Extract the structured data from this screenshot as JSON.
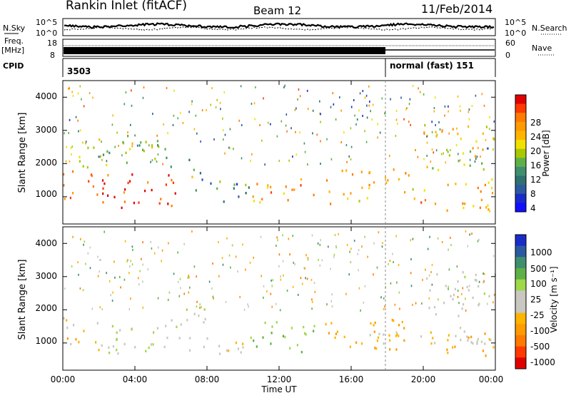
{
  "header": {
    "station": "Rankin Inlet (fitACF)",
    "beam": "Beam 12",
    "date": "11/Feb/2014"
  },
  "noise_panel": {
    "left_label": "N.Sky",
    "right_label": "N.Search",
    "left_ticks": [
      "10^5",
      "10^0"
    ],
    "right_ticks": [
      "10^5",
      "10^0"
    ]
  },
  "freq_panel": {
    "left_label": "Freq.",
    "left_unit": "[MHz]",
    "right_label": "Nave",
    "left_ticks": [
      "18",
      "8"
    ],
    "right_ticks": [
      "60",
      "0"
    ]
  },
  "cpid_panel": {
    "label": "CPID",
    "segments": [
      {
        "text": "3503"
      },
      {
        "text": "normal (fast) 151"
      }
    ]
  },
  "power_panel": {
    "ylabel": "Slant Range [km]",
    "yticks": [
      "4000",
      "3000",
      "2000",
      "1000"
    ],
    "colorbar_label": "Power [dB]",
    "colorbar_ticks": [
      "28",
      "24",
      "20",
      "16",
      "12",
      "8",
      "4"
    ],
    "colorbar_colors": [
      "#e00000",
      "#ff3a00",
      "#ff7a00",
      "#ff9a00",
      "#ffb400",
      "#f2e000",
      "#a8c800",
      "#5fb048",
      "#3f8f6e",
      "#2f7070",
      "#2c5aa0",
      "#1a2cc8",
      "#1010ff"
    ]
  },
  "velocity_panel": {
    "ylabel": "Slant Range [km]",
    "yticks": [
      "4000",
      "3000",
      "2000",
      "1000"
    ],
    "colorbar_label": "Velocity [m s⁻¹]",
    "colorbar_ticks": [
      "1000",
      "500",
      "100",
      "25",
      "-25",
      "-100",
      "-500",
      "-1000"
    ],
    "colorbar_colors": [
      "#1a2cc8",
      "#2c5aa0",
      "#3f8f6e",
      "#5fb048",
      "#9fd848",
      "#c8c8c0",
      "#c8c8c0",
      "#ffb400",
      "#ff9a00",
      "#ff7a00",
      "#ff3a00",
      "#e00000"
    ]
  },
  "xaxis": {
    "label": "Time UT",
    "ticks": [
      "00:00",
      "04:00",
      "08:00",
      "12:00",
      "16:00",
      "20:00",
      "00:00"
    ]
  },
  "chart_data": {
    "type": "heatmap",
    "title": "Rankin Inlet (fitACF)",
    "subtitle": "Beam 12",
    "date": "11/Feb/2014",
    "xlabel": "Time UT",
    "ylabel": "Slant Range [km]",
    "x_range_hours": [
      0,
      24
    ],
    "y_range_km": [
      180,
      4500
    ],
    "x_ticks_hours": [
      0,
      4,
      8,
      12,
      16,
      20,
      24
    ],
    "y_ticks_km": [
      1000,
      2000,
      3000,
      4000
    ],
    "cpid_switch_hour": 18,
    "panels": [
      {
        "name": "Power",
        "units": "dB",
        "colorbar_ticks": [
          28,
          24,
          20,
          16,
          12,
          8,
          4
        ],
        "scatter_regions": [
          {
            "t0": 0.0,
            "t1": 6.6,
            "r0": 700,
            "r1": 1800,
            "value": 26
          },
          {
            "t0": 6.6,
            "t1": 7.2,
            "r0": 1500,
            "r1": 2200,
            "value": 14
          },
          {
            "t0": 7.2,
            "t1": 7.9,
            "r0": 1000,
            "r1": 2100,
            "value": 10
          },
          {
            "t0": 7.9,
            "t1": 10.4,
            "r0": 700,
            "r1": 1500,
            "value": 9
          },
          {
            "t0": 10.4,
            "t1": 15.0,
            "r0": 800,
            "r1": 1600,
            "value": 22
          },
          {
            "t0": 15.0,
            "t1": 19.5,
            "r0": 900,
            "r1": 1900,
            "value": 20
          },
          {
            "t0": 19.5,
            "t1": 24.0,
            "r0": 600,
            "r1": 1600,
            "value": 21
          },
          {
            "t0": 20.0,
            "t1": 24.0,
            "r0": 1800,
            "r1": 3200,
            "value": 18
          },
          {
            "t0": 0.2,
            "t1": 6.0,
            "r0": 1900,
            "r1": 2900,
            "value": 15
          }
        ]
      },
      {
        "name": "Velocity",
        "units": "m s-1",
        "colorbar_ticks": [
          1000,
          500,
          100,
          25,
          -25,
          -100,
          -500,
          -1000
        ],
        "scatter_regions": [
          {
            "t0": 0.0,
            "t1": 2.0,
            "r0": 700,
            "r1": 1800,
            "value": -300
          },
          {
            "t0": 2.0,
            "t1": 6.6,
            "r0": 700,
            "r1": 1800,
            "value": 200
          },
          {
            "t0": 6.6,
            "t1": 8.0,
            "r0": 700,
            "r1": 2100,
            "value": 100
          },
          {
            "t0": 8.0,
            "t1": 10.4,
            "r0": 700,
            "r1": 1400,
            "value": -150
          },
          {
            "t0": 10.4,
            "t1": 14.0,
            "r0": 700,
            "r1": 1700,
            "value": 400
          },
          {
            "t0": 14.0,
            "t1": 19.0,
            "r0": 700,
            "r1": 1800,
            "value": -400
          },
          {
            "t0": 17.0,
            "t1": 24.0,
            "r0": 1000,
            "r1": 1500,
            "value": 0
          },
          {
            "t0": 20.0,
            "t1": 24.0,
            "r0": 600,
            "r1": 1400,
            "value": -300
          },
          {
            "t0": 20.0,
            "t1": 24.0,
            "r0": 1800,
            "r1": 3200,
            "value": 50
          }
        ]
      }
    ]
  }
}
